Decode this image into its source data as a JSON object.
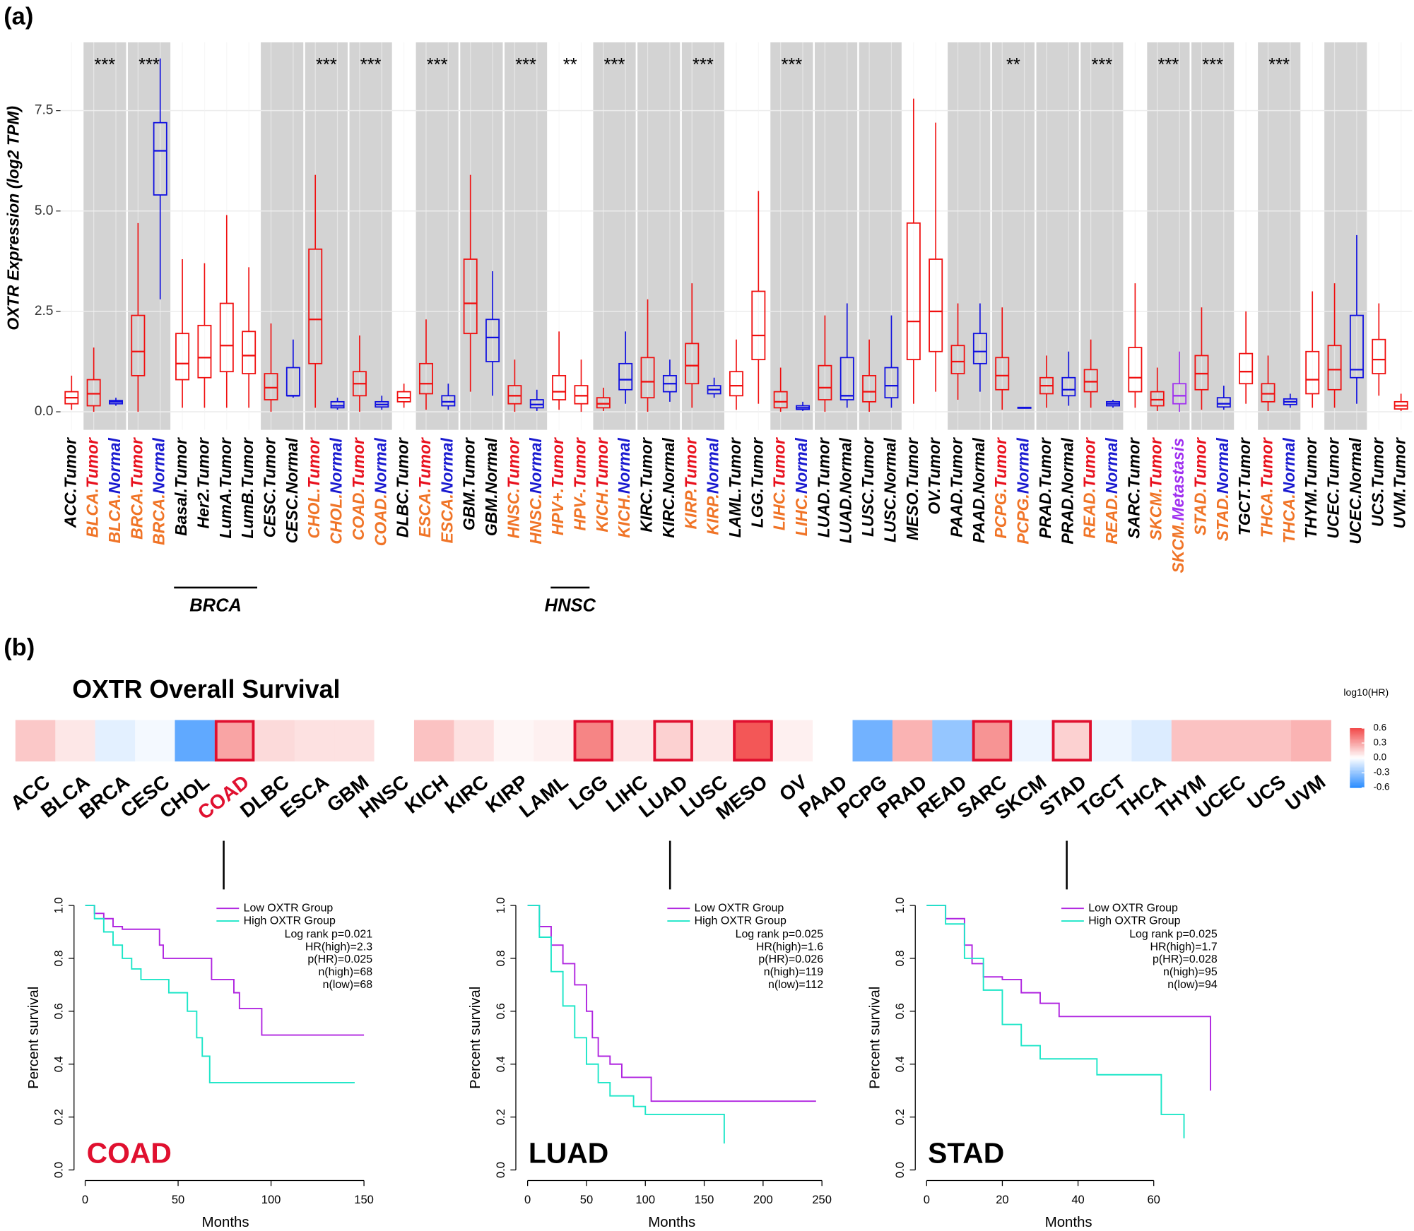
{
  "chart_data": [
    {
      "type": "box",
      "panel": "(a)",
      "ylabel": "OXTR Expression (log2 TPM)",
      "categories": [
        "ACC.Tumor",
        "BLCA.Tumor",
        "BLCA.Normal",
        "BRCA.Tumor",
        "BRCA.Normal",
        "Basal.Tumor",
        "Her2.Tumor",
        "LumA.Tumor",
        "LumB.Tumor",
        "CESC.Tumor",
        "CESC.Normal",
        "CHOL.Tumor",
        "CHOL.Normal",
        "COAD.Tumor",
        "COAD.Normal",
        "DLBC.Tumor",
        "ESCA.Tumor",
        "ESCA.Normal",
        "GBM.Tumor",
        "GBM.Normal",
        "HNSC.Tumor",
        "HNSC.Normal",
        "HPV+.Tumor",
        "HPV-.Tumor",
        "KICH.Tumor",
        "KICH.Normal",
        "KIRC.Tumor",
        "KIRC.Normal",
        "KIRP.Tumor",
        "KIRP.Normal",
        "LAML.Tumor",
        "LGG.Tumor",
        "LIHC.Tumor",
        "LIHC.Normal",
        "LUAD.Tumor",
        "LUAD.Normal",
        "LUSC.Tumor",
        "LUSC.Normal",
        "MESO.Tumor",
        "OV.Tumor",
        "PAAD.Tumor",
        "PAAD.Normal",
        "PCPG.Tumor",
        "PCPG.Normal",
        "PRAD.Tumor",
        "PRAD.Normal",
        "READ.Tumor",
        "READ.Normal",
        "SARC.Tumor",
        "SKCM.Tumor",
        "SKCM.Metastasis",
        "STAD.Tumor",
        "STAD.Normal",
        "TGCT.Tumor",
        "THCA.Tumor",
        "THCA.Normal",
        "THYM.Tumor",
        "UCEC.Tumor",
        "UCEC.Normal",
        "UCS.Tumor",
        "UVM.Tumor"
      ],
      "whisker_low": [
        0.05,
        0,
        0.15,
        0,
        2.8,
        0.1,
        0.1,
        0.1,
        0.1,
        0,
        0.35,
        0.1,
        0.05,
        0,
        0.05,
        0.1,
        0.05,
        0.05,
        0.5,
        0.4,
        0,
        0.02,
        0.05,
        0,
        0.02,
        0.2,
        0,
        0.25,
        0.1,
        0.35,
        0.05,
        0.2,
        0,
        0.02,
        0,
        0.1,
        0,
        0.1,
        0.2,
        0.5,
        0.3,
        0.5,
        0.05,
        0.08,
        0.1,
        0.15,
        0.1,
        0.1,
        0.1,
        0.02,
        0,
        0.05,
        0.05,
        0.2,
        0.02,
        0.1,
        0.1,
        0.1,
        0.2,
        0.4,
        0.02
      ],
      "q1": [
        0.2,
        0.15,
        0.2,
        0.9,
        5.4,
        0.8,
        0.85,
        1.0,
        0.95,
        0.3,
        0.4,
        1.2,
        0.1,
        0.4,
        0.12,
        0.25,
        0.45,
        0.15,
        1.95,
        1.25,
        0.2,
        0.1,
        0.3,
        0.2,
        0.1,
        0.55,
        0.35,
        0.5,
        0.7,
        0.45,
        0.4,
        1.3,
        0.1,
        0.06,
        0.3,
        0.3,
        0.25,
        0.35,
        1.3,
        1.5,
        0.95,
        1.2,
        0.55,
        0.09,
        0.45,
        0.4,
        0.5,
        0.15,
        0.5,
        0.15,
        0.2,
        0.55,
        0.12,
        0.7,
        0.25,
        0.18,
        0.45,
        0.55,
        0.85,
        0.95,
        0.07
      ],
      "median": [
        0.35,
        0.45,
        0.25,
        1.5,
        6.5,
        1.2,
        1.35,
        1.65,
        1.4,
        0.6,
        0.4,
        2.3,
        0.15,
        0.7,
        0.18,
        0.35,
        0.7,
        0.25,
        2.7,
        1.85,
        0.4,
        0.18,
        0.5,
        0.4,
        0.2,
        0.8,
        0.75,
        0.7,
        1.15,
        0.55,
        0.65,
        1.9,
        0.25,
        0.1,
        0.6,
        0.4,
        0.5,
        0.65,
        2.25,
        2.5,
        1.25,
        1.5,
        0.9,
        0.1,
        0.65,
        0.55,
        0.75,
        0.2,
        0.85,
        0.3,
        0.4,
        0.95,
        0.2,
        1.0,
        0.45,
        0.25,
        0.8,
        1.05,
        1.05,
        1.3,
        0.15
      ],
      "q3": [
        0.5,
        0.8,
        0.28,
        2.4,
        7.2,
        1.95,
        2.15,
        2.7,
        2.0,
        0.95,
        1.1,
        4.05,
        0.25,
        1.0,
        0.25,
        0.5,
        1.2,
        0.4,
        3.8,
        2.3,
        0.65,
        0.3,
        0.9,
        0.65,
        0.35,
        1.2,
        1.35,
        0.9,
        1.7,
        0.65,
        1.0,
        3.0,
        0.5,
        0.15,
        1.15,
        1.35,
        0.9,
        1.1,
        4.7,
        3.8,
        1.65,
        1.95,
        1.35,
        0.11,
        0.85,
        0.85,
        1.05,
        0.25,
        1.6,
        0.5,
        0.7,
        1.4,
        0.35,
        1.45,
        0.7,
        0.32,
        1.5,
        1.65,
        2.4,
        1.8,
        0.25
      ],
      "whisker_high": [
        0.9,
        1.6,
        0.35,
        4.7,
        8.8,
        3.8,
        3.7,
        4.9,
        3.6,
        2.2,
        1.8,
        5.9,
        0.35,
        1.9,
        0.4,
        0.7,
        2.3,
        0.7,
        5.9,
        3.5,
        1.3,
        0.55,
        2.0,
        1.3,
        0.6,
        2.0,
        2.8,
        1.3,
        3.2,
        0.85,
        1.8,
        5.5,
        1.1,
        0.25,
        2.4,
        2.7,
        1.8,
        2.4,
        7.8,
        7.2,
        2.7,
        2.7,
        2.6,
        0.12,
        1.4,
        1.5,
        1.8,
        0.3,
        3.2,
        1.1,
        1.5,
        2.6,
        0.65,
        2.5,
        1.4,
        0.45,
        3.0,
        3.2,
        4.4,
        2.7,
        0.45
      ],
      "box_colors": [
        "#f01010",
        "#f01010",
        "#1010e0",
        "#f01010",
        "#1010e0",
        "#f01010",
        "#f01010",
        "#f01010",
        "#f01010",
        "#f01010",
        "#1010e0",
        "#f01010",
        "#1010e0",
        "#f01010",
        "#1010e0",
        "#f01010",
        "#f01010",
        "#1010e0",
        "#f01010",
        "#1010e0",
        "#f01010",
        "#1010e0",
        "#f01010",
        "#f01010",
        "#f01010",
        "#1010e0",
        "#f01010",
        "#1010e0",
        "#f01010",
        "#1010e0",
        "#f01010",
        "#f01010",
        "#f01010",
        "#1010e0",
        "#f01010",
        "#1010e0",
        "#f01010",
        "#1010e0",
        "#f01010",
        "#f01010",
        "#f01010",
        "#1010e0",
        "#f01010",
        "#1010e0",
        "#f01010",
        "#1010e0",
        "#f01010",
        "#1010e0",
        "#f01010",
        "#f01010",
        "#a030f0",
        "#f01010",
        "#1010e0",
        "#f01010",
        "#f01010",
        "#1010e0",
        "#f01010",
        "#f01010",
        "#1010e0",
        "#f01010",
        "#f01010"
      ],
      "label_colors": [
        [
          "#000000",
          "#000000"
        ],
        [
          "#f07427",
          "#e8101d"
        ],
        [
          "#f07427",
          "#1a1ad0"
        ],
        [
          "#f07427",
          "#e8101d"
        ],
        [
          "#f07427",
          "#1a1ad0"
        ],
        [
          "#000000",
          "#000000"
        ],
        [
          "#000000",
          "#000000"
        ],
        [
          "#000000",
          "#000000"
        ],
        [
          "#000000",
          "#000000"
        ],
        [
          "#000000",
          "#000000"
        ],
        [
          "#000000",
          "#000000"
        ],
        [
          "#f07427",
          "#e8101d"
        ],
        [
          "#f07427",
          "#1a1ad0"
        ],
        [
          "#f07427",
          "#e8101d"
        ],
        [
          "#f07427",
          "#1a1ad0"
        ],
        [
          "#000000",
          "#000000"
        ],
        [
          "#f07427",
          "#e8101d"
        ],
        [
          "#f07427",
          "#1a1ad0"
        ],
        [
          "#000000",
          "#000000"
        ],
        [
          "#000000",
          "#000000"
        ],
        [
          "#f07427",
          "#e8101d"
        ],
        [
          "#f07427",
          "#1a1ad0"
        ],
        [
          "#f07427",
          "#e8101d"
        ],
        [
          "#f07427",
          "#e8101d"
        ],
        [
          "#f07427",
          "#e8101d"
        ],
        [
          "#f07427",
          "#1a1ad0"
        ],
        [
          "#000000",
          "#000000"
        ],
        [
          "#000000",
          "#000000"
        ],
        [
          "#f07427",
          "#e8101d"
        ],
        [
          "#f07427",
          "#1a1ad0"
        ],
        [
          "#000000",
          "#000000"
        ],
        [
          "#000000",
          "#000000"
        ],
        [
          "#f07427",
          "#e8101d"
        ],
        [
          "#f07427",
          "#1a1ad0"
        ],
        [
          "#000000",
          "#000000"
        ],
        [
          "#000000",
          "#000000"
        ],
        [
          "#000000",
          "#000000"
        ],
        [
          "#000000",
          "#000000"
        ],
        [
          "#000000",
          "#000000"
        ],
        [
          "#000000",
          "#000000"
        ],
        [
          "#000000",
          "#000000"
        ],
        [
          "#000000",
          "#000000"
        ],
        [
          "#f07427",
          "#e8101d"
        ],
        [
          "#f07427",
          "#1a1ad0"
        ],
        [
          "#000000",
          "#000000"
        ],
        [
          "#000000",
          "#000000"
        ],
        [
          "#f07427",
          "#e8101d"
        ],
        [
          "#f07427",
          "#1a1ad0"
        ],
        [
          "#000000",
          "#000000"
        ],
        [
          "#f07427",
          "#e8101d"
        ],
        [
          "#f07427",
          "#a030f0"
        ],
        [
          "#f07427",
          "#e8101d"
        ],
        [
          "#f07427",
          "#1a1ad0"
        ],
        [
          "#000000",
          "#000000"
        ],
        [
          "#f07427",
          "#e8101d"
        ],
        [
          "#f07427",
          "#1a1ad0"
        ],
        [
          "#000000",
          "#000000"
        ],
        [
          "#000000",
          "#000000"
        ],
        [
          "#000000",
          "#000000"
        ],
        [
          "#000000",
          "#000000"
        ],
        [
          "#000000",
          "#000000"
        ]
      ],
      "significance": [
        null,
        "***",
        null,
        "***",
        null,
        null,
        null,
        null,
        null,
        null,
        null,
        "***",
        null,
        "***",
        null,
        null,
        "***",
        null,
        null,
        null,
        "***",
        null,
        "**",
        null,
        "***",
        null,
        null,
        null,
        "***",
        null,
        null,
        null,
        "***",
        null,
        null,
        null,
        null,
        null,
        null,
        null,
        null,
        null,
        "**",
        null,
        null,
        null,
        "***",
        null,
        null,
        "***",
        null,
        "***",
        null,
        null,
        "***",
        null,
        null,
        null,
        null,
        null,
        null
      ],
      "groups": [
        {
          "text": "BRCA",
          "from": 5,
          "to": 8
        },
        {
          "text": "HNSC",
          "from": 22,
          "to": 23
        }
      ],
      "ylim": [
        -0.45,
        9.2
      ],
      "yticks": [
        {
          "value": 0,
          "label": "0.0"
        },
        2.5,
        {
          "value": 5,
          "label": "5.0"
        },
        7.5
      ],
      "grid": true
    },
    {
      "type": "heatmap",
      "panel": "(b)",
      "title": "OXTR Overall Survival",
      "legend_title": "log10(HR)",
      "categories": [
        "ACC",
        "BLCA",
        "BRCA",
        "CESC",
        "CHOL",
        "COAD",
        "DLBC",
        "ESCA",
        "GBM",
        "HNSC",
        "KICH",
        "KIRC",
        "KIRP",
        "LAML",
        "LGG",
        "LIHC",
        "LUAD",
        "LUSC",
        "MESO",
        "OV",
        "PAAD",
        "PCPG",
        "PRAD",
        "READ",
        "SARC",
        "SKCM",
        "STAD",
        "TGCT",
        "THCA",
        "THYM",
        "UCEC",
        "UCS",
        "UVM"
      ],
      "values": [
        0.18,
        0.08,
        -0.08,
        -0.03,
        -0.45,
        0.3,
        0.12,
        0.1,
        0.1,
        0,
        0.2,
        0.1,
        0.03,
        0.05,
        0.4,
        0.08,
        0.15,
        0.08,
        0.55,
        0.05,
        0,
        -0.4,
        0.25,
        -0.3,
        0.35,
        -0.05,
        0.15,
        -0.05,
        -0.1,
        0.2,
        0.2,
        0.2,
        0.25
      ],
      "significant": [
        false,
        false,
        false,
        false,
        false,
        true,
        false,
        false,
        false,
        false,
        false,
        false,
        false,
        false,
        true,
        false,
        true,
        false,
        true,
        false,
        false,
        false,
        false,
        false,
        true,
        false,
        true,
        false,
        false,
        false,
        false,
        false,
        false
      ],
      "highlight_index": 5,
      "highlight_color": "#e0102f",
      "colormap": {
        "low": "#2b8cff",
        "mid": "#ffffff",
        "high": "#f24848"
      },
      "clim": [
        -0.6,
        0.6
      ],
      "cticks": [
        0.6,
        0.3,
        {
          "value": 0,
          "label": "0.0"
        },
        -0.3,
        -0.6
      ]
    },
    {
      "type": "line",
      "step": true,
      "label": "COAD",
      "label_color": "#e0102f",
      "xlabel": "Months",
      "ylabel": "Percent survival",
      "xlim": [
        -6,
        157
      ],
      "xticks": [
        0,
        50,
        100,
        150
      ],
      "ylim": [
        -0.04,
        1.04
      ],
      "yticks": [
        {
          "value": 0,
          "label": "0.0"
        },
        0.2,
        0.4,
        0.6,
        0.8,
        {
          "value": 1,
          "label": "1.0"
        }
      ],
      "series": [
        {
          "name": "Low OXTR Group",
          "color": "#b026e0",
          "x": [
            0,
            5,
            10,
            15,
            20,
            40,
            42,
            68,
            80,
            83,
            95,
            150
          ],
          "values": [
            1,
            0.97,
            0.95,
            0.92,
            0.91,
            0.85,
            0.8,
            0.72,
            0.67,
            0.61,
            0.51,
            0.51
          ]
        },
        {
          "name": "High OXTR Group",
          "color": "#1ee6c8",
          "x": [
            0,
            5,
            10,
            15,
            20,
            25,
            30,
            45,
            55,
            60,
            63,
            67,
            145
          ],
          "values": [
            1,
            0.95,
            0.9,
            0.85,
            0.8,
            0.76,
            0.72,
            0.67,
            0.6,
            0.5,
            0.43,
            0.33,
            0.33
          ]
        }
      ],
      "annotations": [
        "Log rank p=0.021",
        "HR(high)=2.3",
        "p(HR)=0.025",
        "n(high)=68",
        "n(low)=68"
      ]
    },
    {
      "type": "line",
      "step": true,
      "label": "LUAD",
      "label_color": "#000000",
      "xlabel": "Months",
      "ylabel": "Percent survival",
      "xlim": [
        -10,
        255
      ],
      "xticks": [
        0,
        50,
        100,
        150,
        200,
        250
      ],
      "ylim": [
        -0.04,
        1.04
      ],
      "yticks": [
        {
          "value": 0,
          "label": "0.0"
        },
        0.2,
        0.4,
        0.6,
        0.8,
        {
          "value": 1,
          "label": "1.0"
        }
      ],
      "series": [
        {
          "name": "Low OXTR Group",
          "color": "#b026e0",
          "x": [
            0,
            10,
            20,
            30,
            40,
            50,
            55,
            60,
            70,
            80,
            105,
            245
          ],
          "values": [
            1,
            0.92,
            0.85,
            0.78,
            0.7,
            0.6,
            0.5,
            0.43,
            0.4,
            0.35,
            0.26,
            0.26
          ]
        },
        {
          "name": "High OXTR Group",
          "color": "#1ee6c8",
          "x": [
            0,
            10,
            20,
            30,
            40,
            50,
            60,
            70,
            90,
            100,
            165,
            167
          ],
          "values": [
            1,
            0.88,
            0.75,
            0.62,
            0.5,
            0.4,
            0.33,
            0.28,
            0.24,
            0.21,
            0.21,
            0.1
          ]
        }
      ],
      "annotations": [
        "Log rank p=0.025",
        "HR(high)=1.6",
        "p(HR)=0.026",
        "n(high)=119",
        "n(low)=112"
      ]
    },
    {
      "type": "line",
      "step": true,
      "label": "STAD",
      "label_color": "#000000",
      "xlabel": "Months",
      "ylabel": "Percent survival",
      "xlim": [
        -3,
        78
      ],
      "xticks": [
        0,
        20,
        40,
        60
      ],
      "ylim": [
        -0.04,
        1.04
      ],
      "yticks": [
        {
          "value": 0,
          "label": "0.0"
        },
        0.2,
        0.4,
        0.6,
        0.8,
        {
          "value": 1,
          "label": "1.0"
        }
      ],
      "series": [
        {
          "name": "Low OXTR Group",
          "color": "#b026e0",
          "x": [
            0,
            5,
            10,
            12,
            15,
            20,
            25,
            30,
            35,
            74,
            75
          ],
          "values": [
            1,
            0.95,
            0.85,
            0.78,
            0.73,
            0.72,
            0.67,
            0.63,
            0.58,
            0.58,
            0.3
          ]
        },
        {
          "name": "High OXTR Group",
          "color": "#1ee6c8",
          "x": [
            0,
            5,
            10,
            15,
            20,
            25,
            30,
            45,
            60,
            62,
            68
          ],
          "values": [
            1,
            0.93,
            0.8,
            0.68,
            0.55,
            0.47,
            0.42,
            0.36,
            0.36,
            0.21,
            0.12
          ]
        }
      ],
      "annotations": [
        "Log rank p=0.025",
        "HR(high)=1.7",
        "p(HR)=0.028",
        "n(high)=95",
        "n(low)=94"
      ]
    }
  ]
}
